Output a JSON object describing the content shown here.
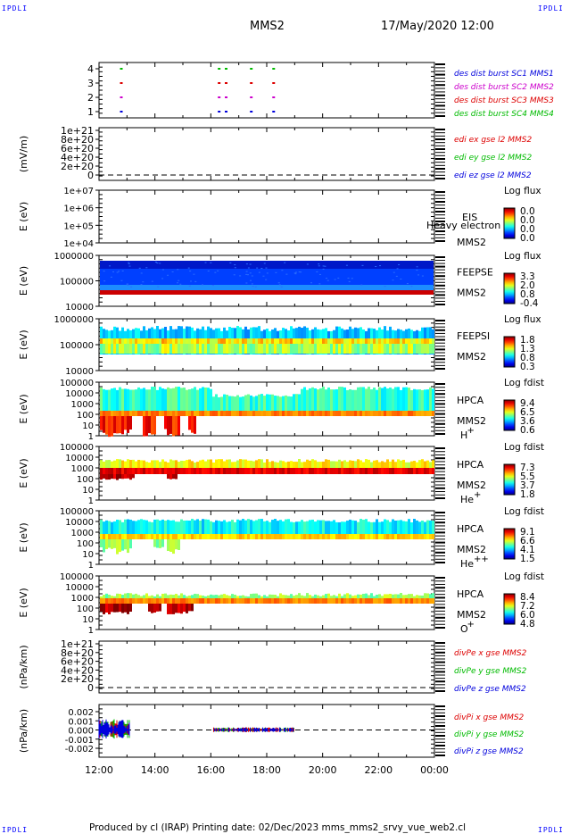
{
  "corners": {
    "tl": "IPDLI",
    "tr": "IPDLI",
    "bl": "IPDLI",
    "br": "IPDLI"
  },
  "header": {
    "spacecraft": "MMS2",
    "date": "17/May/2020 12:00"
  },
  "footer": {
    "text": "Produced by cl (IRAP)    Printing date: 02/Dec/2023    mms_mms2_srvy_vue_web2.cl"
  },
  "colors": {
    "red": "#dd0000",
    "magenta": "#cc00cc",
    "green": "#00bb00",
    "blue": "#0000dd"
  },
  "chart_data": [
    {
      "id": "burst",
      "type": "scatter",
      "ylabel": "",
      "yticks": [
        "4",
        "3",
        "2",
        "1"
      ],
      "series": [
        {
          "name": "des dist burst SC1 MMS1",
          "color": "#0000dd",
          "y": 1
        },
        {
          "name": "des dist burst SC2 MMS2",
          "color": "#cc00cc",
          "y": 2
        },
        {
          "name": "des dist burst SC3 MMS3",
          "color": "#dd0000",
          "y": 3
        },
        {
          "name": "des dist burst SC4 MMS4",
          "color": "#00bb00",
          "y": 4
        }
      ],
      "burst_times_h": [
        12.75,
        16.25,
        16.5,
        17.4,
        18.2
      ]
    },
    {
      "id": "edi",
      "type": "line",
      "ylabel": "(mV/m)",
      "yticks": [
        "1e+21",
        "8e+20",
        "6e+20",
        "4e+20",
        "2e+20",
        "0"
      ],
      "legend": [
        {
          "label": "edi ex gse l2 MMS2",
          "color": "#dd0000"
        },
        {
          "label": "edi ey gse l2 MMS2",
          "color": "#00bb00"
        },
        {
          "label": "edi ez gse l2 MMS2",
          "color": "#0000dd"
        }
      ]
    },
    {
      "id": "eis",
      "type": "heatmap",
      "ylabel": "E (eV)",
      "yticks": [
        "1e+07",
        "1e+06",
        "1e+05",
        "1e+04"
      ],
      "instrument": "EIS",
      "sc": "MMS2",
      "overlay": "Heavy electron td",
      "cb_title": "Log flux",
      "cb_values": [
        "0.0",
        "0.0",
        "0.0",
        "0.0"
      ]
    },
    {
      "id": "feepse",
      "type": "heatmap",
      "ylabel": "E (eV)",
      "yticks": [
        "1000000",
        "100000",
        "10000"
      ],
      "instrument": "FEEPSE",
      "sc": "MMS2",
      "cb_title": "Log flux",
      "cb_values": [
        "3.3",
        "2.0",
        "0.8",
        "-0.4"
      ]
    },
    {
      "id": "feepsi",
      "type": "heatmap",
      "ylabel": "E (eV)",
      "yticks": [
        "1000000",
        "100000",
        "10000"
      ],
      "instrument": "FEEPSI",
      "sc": "MMS2",
      "cb_title": "Log flux",
      "cb_values": [
        "1.8",
        "1.3",
        "0.8",
        "0.3"
      ]
    },
    {
      "id": "hpca_h",
      "type": "heatmap",
      "ylabel": "E (eV)",
      "yticks": [
        "100000",
        "10000",
        "1000",
        "100",
        "10",
        "1"
      ],
      "instrument": "HPCA",
      "sc": "MMS2",
      "species": "H",
      "charge": "+",
      "cb_title": "Log fdist",
      "cb_values": [
        "9.4",
        "6.5",
        "3.6",
        "0.6"
      ]
    },
    {
      "id": "hpca_he1",
      "type": "heatmap",
      "ylabel": "E (eV)",
      "yticks": [
        "100000",
        "10000",
        "1000",
        "100",
        "10",
        "1"
      ],
      "instrument": "HPCA",
      "sc": "MMS2",
      "species": "He",
      "charge": "+",
      "cb_title": "Log fdist",
      "cb_values": [
        "7.3",
        "5.5",
        "3.7",
        "1.8"
      ]
    },
    {
      "id": "hpca_he2",
      "type": "heatmap",
      "ylabel": "E (eV)",
      "yticks": [
        "100000",
        "10000",
        "1000",
        "100",
        "10",
        "1"
      ],
      "instrument": "HPCA",
      "sc": "MMS2",
      "species": "He",
      "charge": "++",
      "cb_title": "Log fdist",
      "cb_values": [
        "9.1",
        "6.6",
        "4.1",
        "1.5"
      ]
    },
    {
      "id": "hpca_o",
      "type": "heatmap",
      "ylabel": "E (eV)",
      "yticks": [
        "100000",
        "10000",
        "1000",
        "100",
        "10",
        "1"
      ],
      "instrument": "HPCA",
      "sc": "MMS2",
      "species": "O",
      "charge": "+",
      "cb_title": "Log fdist",
      "cb_values": [
        "8.4",
        "7.2",
        "6.0",
        "4.8"
      ]
    },
    {
      "id": "divpe",
      "type": "line",
      "ylabel": "(nPa/km)",
      "yticks": [
        "1e+21",
        "8e+20",
        "6e+20",
        "4e+20",
        "2e+20",
        "0"
      ],
      "legend": [
        {
          "label": "divPe x gse MMS2",
          "color": "#dd0000"
        },
        {
          "label": "divPe y gse MMS2",
          "color": "#00bb00"
        },
        {
          "label": "divPe z gse MMS2",
          "color": "#0000dd"
        }
      ]
    },
    {
      "id": "divpi",
      "type": "line",
      "ylabel": "(nPa/km)",
      "yticks": [
        "0.002",
        "0.001",
        "0.000",
        "-0.001",
        "-0.002"
      ],
      "legend": [
        {
          "label": "divPi x gse MMS2",
          "color": "#dd0000"
        },
        {
          "label": "divPi y gse MMS2",
          "color": "#00bb00"
        },
        {
          "label": "divPi z gse MMS2",
          "color": "#0000dd"
        }
      ],
      "data_intervals_h": [
        [
          12.0,
          13.1
        ],
        [
          16.1,
          19.0
        ]
      ]
    }
  ],
  "x_axis": {
    "ticks": [
      "12:00",
      "14:00",
      "16:00",
      "18:00",
      "20:00",
      "22:00",
      "00:00"
    ],
    "range_h": [
      12,
      24
    ]
  }
}
